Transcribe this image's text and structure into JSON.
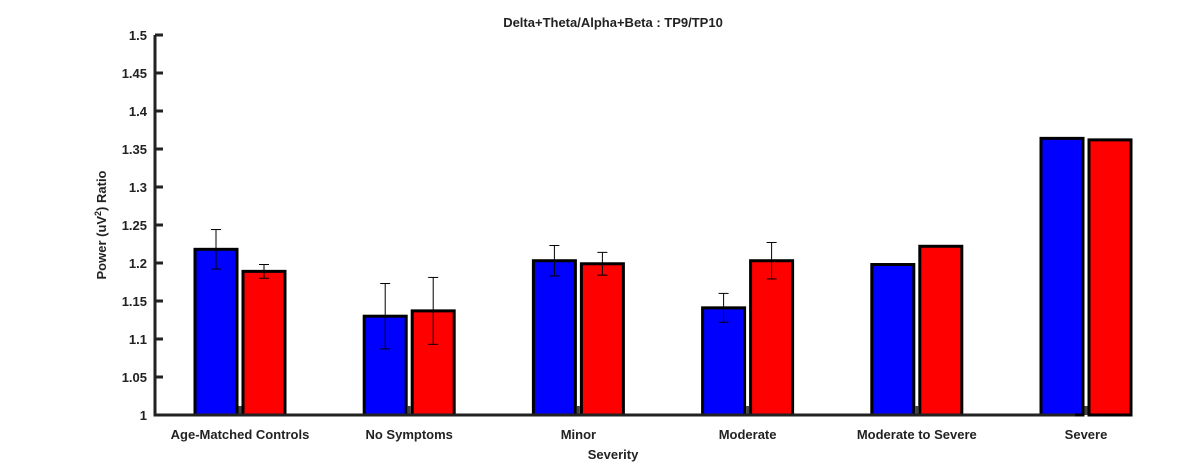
{
  "chart_data": {
    "type": "bar",
    "title": "Delta+Theta/Alpha+Beta :  TP9/TP10",
    "xlabel": "Severity",
    "ylabel": {
      "prefix": "Power (uV",
      "superscript": "2",
      "suffix": ") Ratio"
    },
    "ylim": [
      1,
      1.5
    ],
    "yticks": [
      "1",
      "1.05",
      "1.1",
      "1.15",
      "1.2",
      "1.25",
      "1.3",
      "1.35",
      "1.4",
      "1.45",
      "1.5"
    ],
    "categories": [
      "Age-Matched Controls",
      "No Symptoms",
      "Minor",
      "Moderate",
      "Moderate to Severe",
      "Severe"
    ],
    "series": [
      {
        "color": "#0000ff",
        "values": [
          1.218,
          1.13,
          1.203,
          1.141,
          1.198,
          1.364
        ],
        "errors": [
          0.026,
          0.043,
          0.02,
          0.019,
          null,
          null
        ]
      },
      {
        "color": "#ff0000",
        "values": [
          1.189,
          1.137,
          1.199,
          1.203,
          1.222,
          1.362
        ],
        "errors": [
          0.009,
          0.044,
          0.015,
          0.024,
          null,
          null
        ]
      }
    ]
  }
}
